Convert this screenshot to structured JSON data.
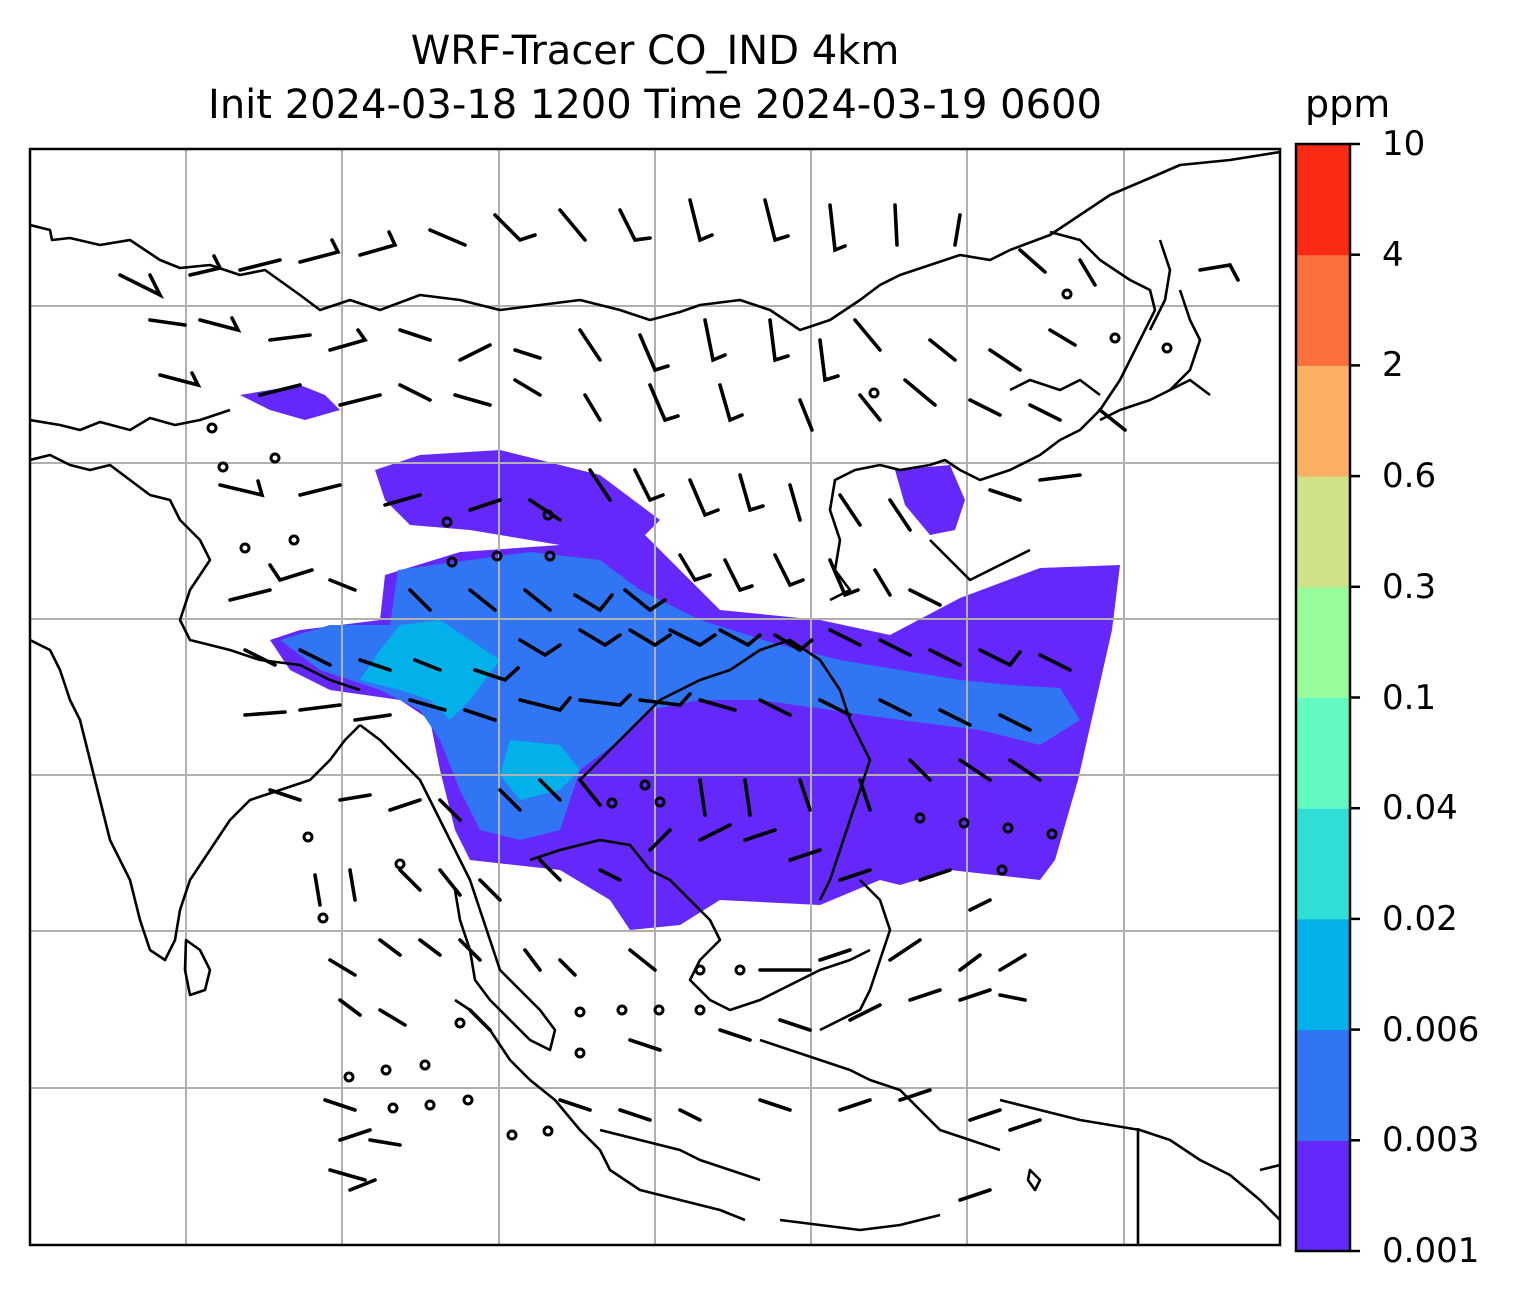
{
  "title_line1": "WRF-Tracer CO_IND 4km",
  "title_line2": "Init 2024-03-18 1200 Time 2024-03-19 0600",
  "colorbar": {
    "unit": "ppm",
    "levels": [
      "0.001",
      "0.003",
      "0.006",
      "0.02",
      "0.04",
      "0.1",
      "0.3",
      "0.6",
      "2",
      "4",
      "10"
    ],
    "colors": [
      "#6528fa",
      "#3075f4",
      "#02b1ea",
      "#2fdfd6",
      "#64f9c0",
      "#99fc9c",
      "#cfe286",
      "#fcb063",
      "#fc6f3f",
      "#fd2a16"
    ]
  },
  "map": {
    "field": "CO_IND tracer concentration",
    "gridlines": true,
    "wind_barbs": true
  }
}
